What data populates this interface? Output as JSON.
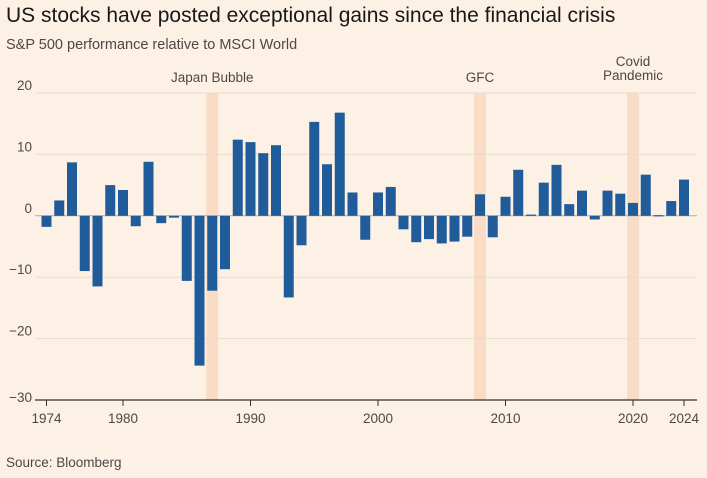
{
  "chart_data": {
    "type": "bar",
    "title": "US stocks have posted exceptional gains since the financial crisis",
    "subtitle": "S&P 500 performance relative to MSCI World",
    "source": "Source: Bloomberg",
    "ylim": [
      -30,
      20
    ],
    "y_ticks": [
      20,
      10,
      0,
      -10,
      -20,
      -30
    ],
    "x_ticks": [
      1974,
      1980,
      1990,
      2000,
      2010,
      2020,
      2024
    ],
    "grid": true,
    "colors": {
      "bar": "#1f5c99",
      "highlight": "#f8dcc6",
      "grid": "#e8dccf",
      "axis": "#33302e"
    },
    "annotations": [
      {
        "label": "Japan Bubble",
        "year": 1987
      },
      {
        "label": "GFC",
        "year": 2008
      },
      {
        "label": "Covid Pandemic",
        "year": 2020
      }
    ],
    "series": [
      {
        "values": [
          {
            "year": 1974,
            "value": -1.8
          },
          {
            "year": 1975,
            "value": 2.5
          },
          {
            "year": 1976,
            "value": 8.7
          },
          {
            "year": 1977,
            "value": -9.0
          },
          {
            "year": 1978,
            "value": -11.5
          },
          {
            "year": 1979,
            "value": 5.0
          },
          {
            "year": 1980,
            "value": 4.2
          },
          {
            "year": 1981,
            "value": -1.7
          },
          {
            "year": 1982,
            "value": 8.8
          },
          {
            "year": 1983,
            "value": -1.2
          },
          {
            "year": 1984,
            "value": -0.3
          },
          {
            "year": 1985,
            "value": -10.6
          },
          {
            "year": 1986,
            "value": -24.4
          },
          {
            "year": 1987,
            "value": -12.2
          },
          {
            "year": 1988,
            "value": -8.7
          },
          {
            "year": 1989,
            "value": 12.4
          },
          {
            "year": 1990,
            "value": 12.0
          },
          {
            "year": 1991,
            "value": 10.2
          },
          {
            "year": 1992,
            "value": 11.5
          },
          {
            "year": 1993,
            "value": -13.3
          },
          {
            "year": 1994,
            "value": -4.8
          },
          {
            "year": 1995,
            "value": 15.3
          },
          {
            "year": 1996,
            "value": 8.4
          },
          {
            "year": 1997,
            "value": 16.8
          },
          {
            "year": 1998,
            "value": 3.8
          },
          {
            "year": 1999,
            "value": -3.9
          },
          {
            "year": 2000,
            "value": 3.8
          },
          {
            "year": 2001,
            "value": 4.7
          },
          {
            "year": 2002,
            "value": -2.2
          },
          {
            "year": 2003,
            "value": -4.3
          },
          {
            "year": 2004,
            "value": -3.8
          },
          {
            "year": 2005,
            "value": -4.5
          },
          {
            "year": 2006,
            "value": -4.2
          },
          {
            "year": 2007,
            "value": -3.4
          },
          {
            "year": 2008,
            "value": 3.5
          },
          {
            "year": 2009,
            "value": -3.5
          },
          {
            "year": 2010,
            "value": 3.1
          },
          {
            "year": 2011,
            "value": 7.5
          },
          {
            "year": 2012,
            "value": 0.2
          },
          {
            "year": 2013,
            "value": 5.4
          },
          {
            "year": 2014,
            "value": 8.3
          },
          {
            "year": 2015,
            "value": 1.9
          },
          {
            "year": 2016,
            "value": 4.1
          },
          {
            "year": 2017,
            "value": -0.6
          },
          {
            "year": 2018,
            "value": 4.1
          },
          {
            "year": 2019,
            "value": 3.6
          },
          {
            "year": 2020,
            "value": 2.1
          },
          {
            "year": 2021,
            "value": 6.7
          },
          {
            "year": 2022,
            "value": 0.1
          },
          {
            "year": 2023,
            "value": 2.4
          },
          {
            "year": 2024,
            "value": 5.9
          }
        ]
      }
    ]
  }
}
